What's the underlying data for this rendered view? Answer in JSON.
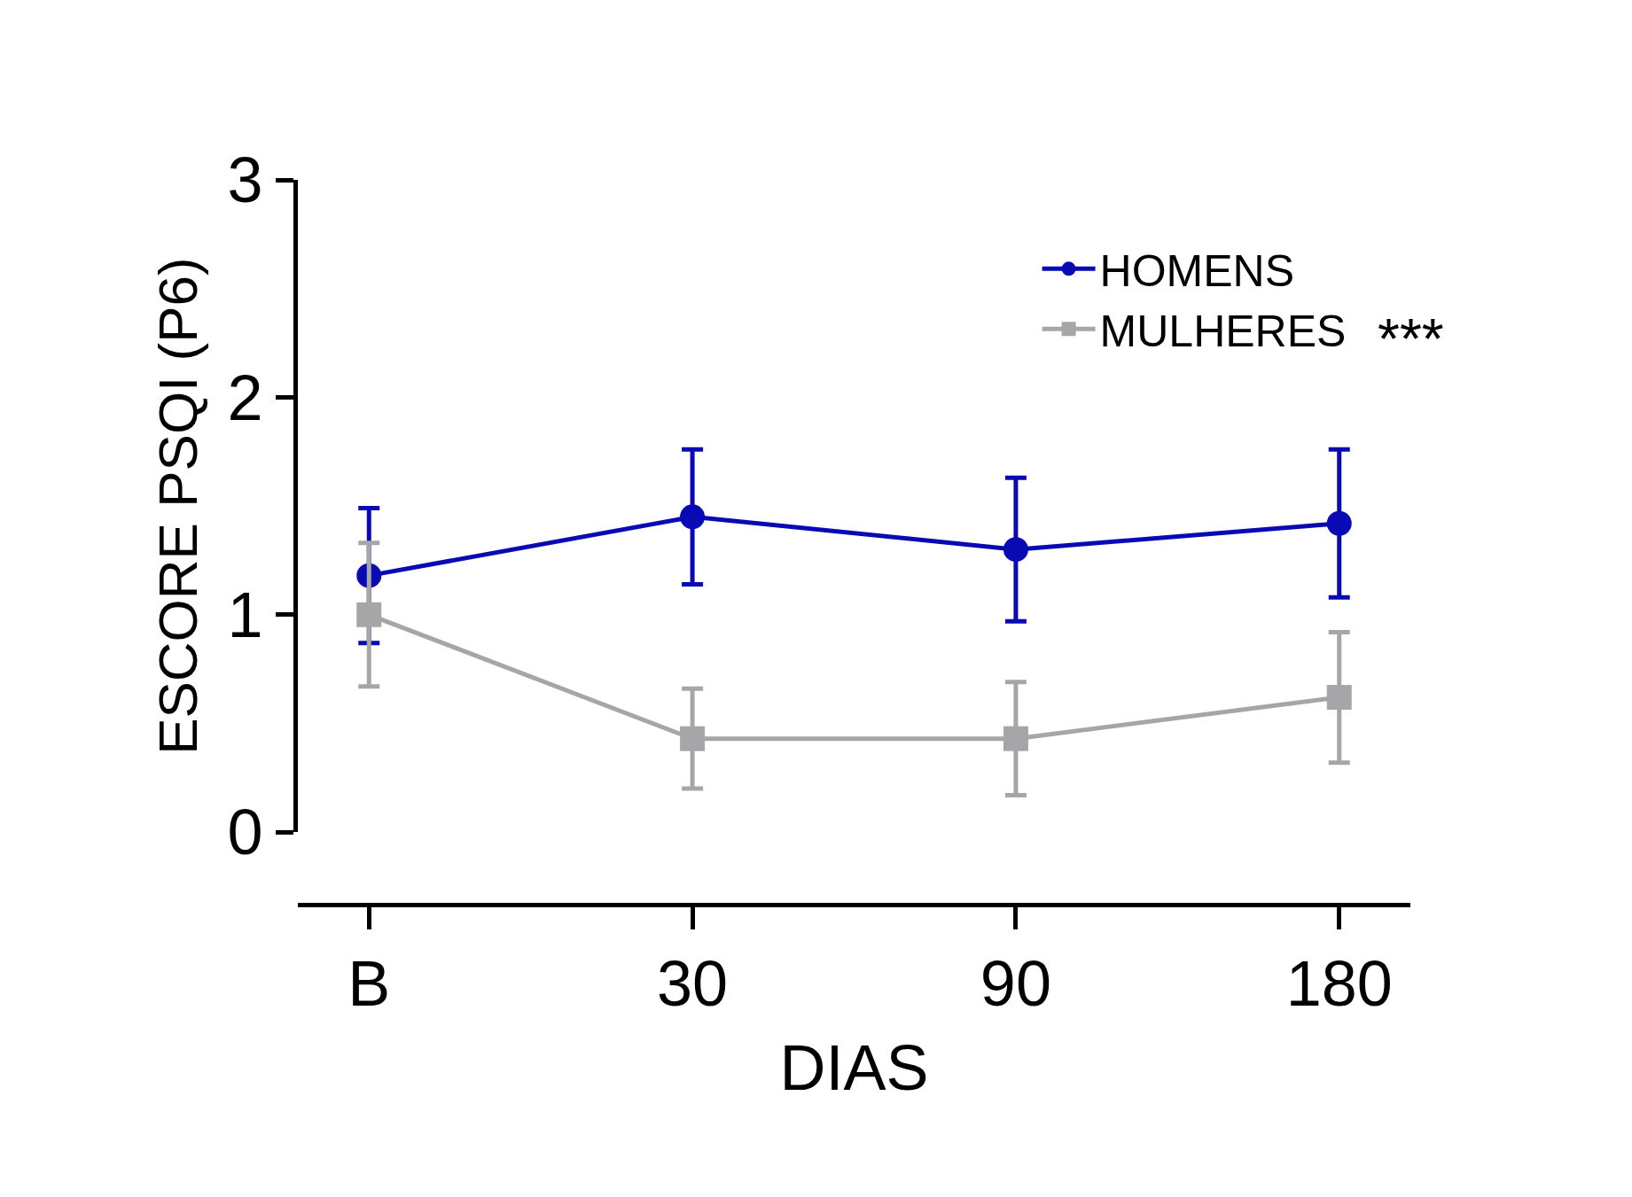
{
  "chart_data": {
    "type": "line",
    "xlabel": "DIAS",
    "ylabel": "ESCORE PSQI (P6)",
    "categories": [
      "B",
      "30",
      "90",
      "180"
    ],
    "series": [
      {
        "name": "HOMENS",
        "color": "#0a0ab4",
        "marker": "circle",
        "values": [
          1.18,
          1.45,
          1.3,
          1.42
        ],
        "errors": [
          0.31,
          0.31,
          0.33,
          0.34
        ]
      },
      {
        "name": "MULHERES",
        "color": "#a6a6a8",
        "marker": "square",
        "values": [
          1.0,
          0.43,
          0.43,
          0.62
        ],
        "errors": [
          0.33,
          0.23,
          0.26,
          0.3
        ]
      }
    ],
    "ylim": [
      0,
      3
    ],
    "yticks": [
      0,
      1,
      2,
      3
    ],
    "legend": "top right",
    "annotations": [
      "***"
    ]
  }
}
